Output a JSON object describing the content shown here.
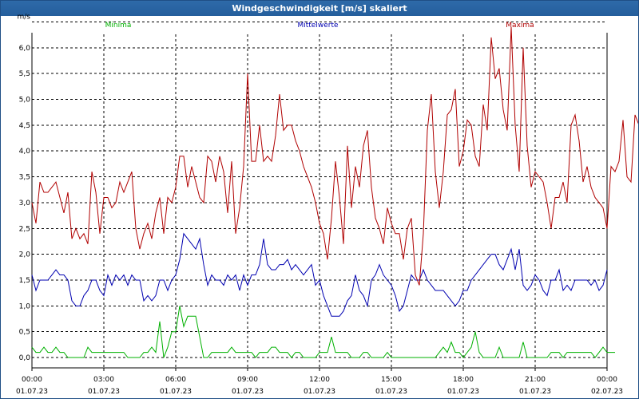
{
  "window": {
    "title": "Windgeschwindigkeit [m/s] skaliert"
  },
  "chart_data": {
    "type": "line",
    "title": "Windgeschwindigkeit [m/s] skaliert",
    "ylabel": "m/s",
    "xlabel": "",
    "ylim": [
      -0.2,
      6.6
    ],
    "xlim": [
      0,
      144
    ],
    "grid": true,
    "legend_placement": "top",
    "y_ticks": [
      "0,0",
      "0,5",
      "1,0",
      "1,5",
      "2,0",
      "2,5",
      "3,0",
      "3,5",
      "4,0",
      "4,5",
      "5,0",
      "5,5",
      "6,0"
    ],
    "y_tick_values": [
      0,
      0.5,
      1,
      1.5,
      2,
      2.5,
      3,
      3.5,
      4,
      4.5,
      5,
      5.5,
      6
    ],
    "x_ticks": [
      {
        "x": 0,
        "time": "00:00",
        "date": "01.07.23"
      },
      {
        "x": 18,
        "time": "03:00",
        "date": "01.07.23"
      },
      {
        "x": 36,
        "time": "06:00",
        "date": "01.07.23"
      },
      {
        "x": 54,
        "time": "09:00",
        "date": "01.07.23"
      },
      {
        "x": 72,
        "time": "12:00",
        "date": "01.07.23"
      },
      {
        "x": 90,
        "time": "15:00",
        "date": "01.07.23"
      },
      {
        "x": 108,
        "time": "18:00",
        "date": "01.07.23"
      },
      {
        "x": 126,
        "time": "21:00",
        "date": "01.07.23"
      },
      {
        "x": 144,
        "time": "00:00",
        "date": "02.07.23"
      }
    ],
    "series": [
      {
        "name": "Minima",
        "color": "#00b000",
        "values": [
          0.2,
          0.1,
          0.1,
          0.2,
          0.1,
          0.1,
          0.2,
          0.1,
          0.1,
          0.0,
          0.0,
          0.0,
          0.0,
          0.0,
          0.2,
          0.1,
          0.1,
          0.1,
          0.1,
          0.1,
          0.1,
          0.1,
          0.1,
          0.1,
          0.0,
          0.0,
          0.0,
          0.0,
          0.1,
          0.1,
          0.2,
          0.1,
          0.7,
          0.0,
          0.2,
          0.5,
          0.5,
          1.0,
          0.6,
          0.8,
          0.8,
          0.8,
          0.4,
          0.0,
          0.0,
          0.1,
          0.1,
          0.1,
          0.1,
          0.1,
          0.2,
          0.1,
          0.1,
          0.1,
          0.1,
          0.1,
          0.0,
          0.1,
          0.1,
          0.1,
          0.2,
          0.2,
          0.1,
          0.1,
          0.1,
          0.0,
          0.1,
          0.1,
          0.0,
          0.0,
          0.0,
          0.0,
          0.1,
          0.1,
          0.1,
          0.4,
          0.1,
          0.1,
          0.1,
          0.1,
          0.0,
          0.0,
          0.0,
          0.1,
          0.1,
          0.0,
          0.0,
          0.0,
          0.0,
          0.1,
          0.0,
          0.0,
          0.0,
          0.0,
          0.0,
          0.0,
          0.0,
          0.0,
          0.0,
          0.0,
          0.0,
          0.0,
          0.1,
          0.2,
          0.1,
          0.3,
          0.1,
          0.1,
          0.0,
          0.1,
          0.2,
          0.5,
          0.1,
          0.0,
          0.0,
          0.0,
          0.0,
          0.2,
          0.0,
          0.0,
          0.0,
          0.0,
          0.0,
          0.3,
          0.0,
          0.0,
          0.0,
          0.0,
          0.0,
          0.0,
          0.1,
          0.1,
          0.1,
          0.0,
          0.1,
          0.1,
          0.1,
          0.1,
          0.1,
          0.1,
          0.1,
          0.0,
          0.1,
          0.2,
          0.1,
          0.1,
          0.1
        ]
      },
      {
        "name": "Mittelwerte",
        "color": "#0000b0",
        "values": [
          1.6,
          1.3,
          1.5,
          1.5,
          1.5,
          1.6,
          1.7,
          1.6,
          1.6,
          1.5,
          1.1,
          1.0,
          1.0,
          1.2,
          1.3,
          1.5,
          1.5,
          1.3,
          1.2,
          1.6,
          1.4,
          1.6,
          1.5,
          1.6,
          1.4,
          1.6,
          1.5,
          1.5,
          1.1,
          1.2,
          1.1,
          1.2,
          1.5,
          1.5,
          1.3,
          1.5,
          1.6,
          1.9,
          2.4,
          2.3,
          2.2,
          2.1,
          2.3,
          1.8,
          1.4,
          1.6,
          1.5,
          1.5,
          1.4,
          1.6,
          1.5,
          1.6,
          1.3,
          1.6,
          1.4,
          1.6,
          1.6,
          1.8,
          2.3,
          1.8,
          1.7,
          1.7,
          1.8,
          1.8,
          1.9,
          1.7,
          1.8,
          1.7,
          1.6,
          1.7,
          1.8,
          1.4,
          1.5,
          1.2,
          1.0,
          0.8,
          0.8,
          0.8,
          0.9,
          1.1,
          1.2,
          1.6,
          1.3,
          1.2,
          1.0,
          1.5,
          1.6,
          1.8,
          1.6,
          1.5,
          1.4,
          1.2,
          0.9,
          1.0,
          1.3,
          1.6,
          1.5,
          1.5,
          1.7,
          1.5,
          1.4,
          1.3,
          1.3,
          1.3,
          1.2,
          1.1,
          1.0,
          1.1,
          1.3,
          1.3,
          1.5,
          1.6,
          1.7,
          1.8,
          1.9,
          2.0,
          2.0,
          1.8,
          1.7,
          1.9,
          2.1,
          1.7,
          2.1,
          1.4,
          1.3,
          1.4,
          1.6,
          1.5,
          1.3,
          1.2,
          1.5,
          1.5,
          1.7,
          1.3,
          1.4,
          1.3,
          1.5,
          1.5,
          1.5,
          1.5,
          1.4,
          1.5,
          1.3,
          1.4,
          1.7
        ]
      },
      {
        "name": "Maxima",
        "color": "#b00000",
        "values": [
          3.0,
          2.6,
          3.4,
          3.2,
          3.2,
          3.3,
          3.4,
          3.1,
          2.8,
          3.2,
          2.3,
          2.5,
          2.3,
          2.4,
          2.2,
          3.6,
          3.2,
          2.4,
          3.1,
          3.1,
          2.9,
          3.0,
          3.4,
          3.2,
          3.4,
          3.6,
          2.5,
          2.1,
          2.4,
          2.6,
          2.3,
          2.8,
          3.1,
          2.4,
          3.1,
          3.0,
          3.3,
          3.9,
          3.9,
          3.3,
          3.7,
          3.4,
          3.1,
          3.0,
          3.9,
          3.8,
          3.4,
          3.9,
          3.6,
          2.8,
          3.8,
          2.4,
          2.9,
          3.7,
          5.5,
          3.8,
          3.8,
          4.5,
          3.8,
          3.9,
          3.8,
          4.3,
          5.1,
          4.4,
          4.5,
          4.5,
          4.2,
          4.0,
          3.7,
          3.5,
          3.3,
          3.0,
          2.6,
          2.4,
          1.9,
          2.7,
          3.8,
          3.1,
          2.2,
          4.1,
          2.9,
          3.7,
          3.3,
          4.1,
          4.4,
          3.3,
          2.7,
          2.5,
          2.2,
          2.9,
          2.6,
          2.4,
          2.4,
          1.9,
          2.5,
          2.7,
          1.6,
          1.4,
          2.4,
          4.4,
          5.1,
          3.6,
          2.9,
          3.6,
          4.7,
          4.8,
          5.2,
          3.7,
          4.0,
          4.6,
          4.5,
          3.9,
          3.7,
          4.9,
          4.4,
          6.2,
          5.4,
          5.6,
          4.8,
          4.4,
          6.4,
          4.5,
          3.6,
          6.0,
          4.1,
          3.3,
          3.6,
          3.5,
          3.4,
          3.0,
          2.5,
          3.1,
          3.1,
          3.4,
          3.0,
          4.5,
          4.7,
          4.2,
          3.4,
          3.7,
          3.3,
          3.1,
          3.0,
          2.9,
          2.5,
          3.7,
          3.6,
          3.8,
          4.6,
          3.5,
          3.4,
          4.7,
          4.5,
          4.2,
          4.8
        ]
      }
    ]
  }
}
